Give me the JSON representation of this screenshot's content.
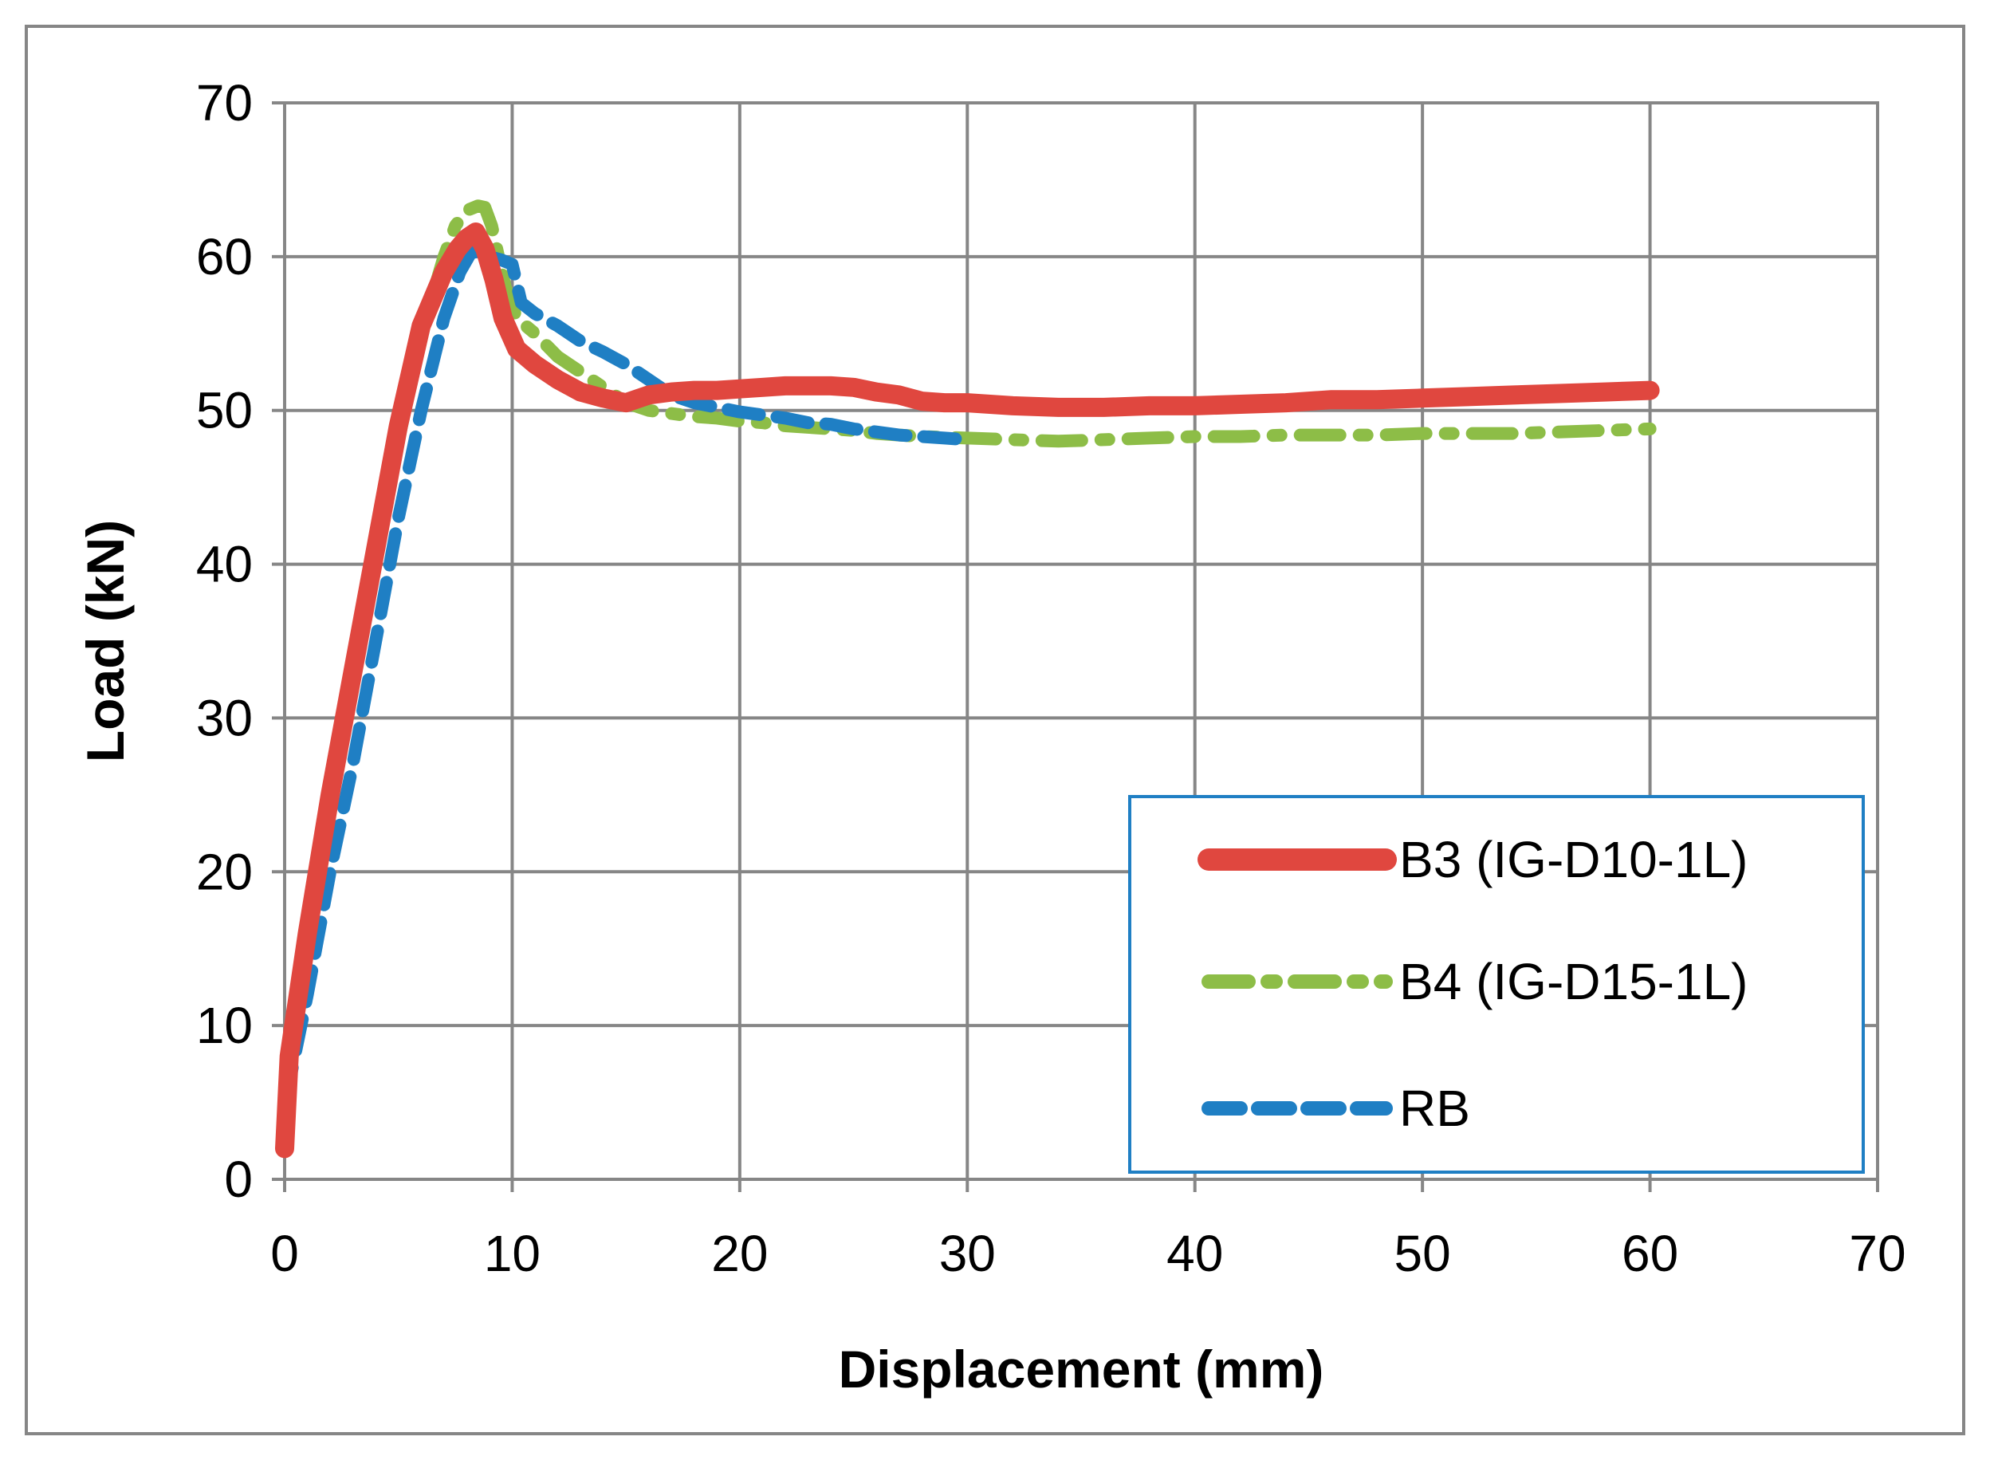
{
  "chart_data": {
    "type": "line",
    "title": "",
    "xlabel": "Displacement (mm)",
    "ylabel": "Load (kN)",
    "xlim": [
      0,
      70
    ],
    "ylim": [
      0,
      70
    ],
    "xticks": [
      0,
      10,
      20,
      30,
      40,
      50,
      60,
      70
    ],
    "yticks": [
      0,
      10,
      20,
      30,
      40,
      50,
      60,
      70
    ],
    "xtick_labels": [
      "0",
      "10",
      "20",
      "30",
      "40",
      "50",
      "60",
      "70"
    ],
    "ytick_labels": [
      "0",
      "10",
      "20",
      "30",
      "40",
      "50",
      "60",
      "70"
    ],
    "grid": true,
    "legend_position": "bottom-right",
    "series": [
      {
        "name": "B3 (IG-D10-1L)",
        "color": "#e0473f",
        "style": "solid",
        "x": [
          0,
          0.2,
          1,
          2,
          3,
          4,
          5,
          6,
          7,
          7.6,
          8,
          8.4,
          8.8,
          9.2,
          9.6,
          10.2,
          11,
          12,
          13,
          14,
          15,
          16,
          17,
          18,
          19,
          20,
          21,
          22,
          23,
          24,
          25,
          26,
          27,
          28,
          29,
          30,
          32,
          34,
          36,
          38,
          40,
          42,
          44,
          46,
          48,
          50,
          52,
          54,
          56,
          58,
          60
        ],
        "y": [
          2,
          8,
          16,
          25,
          33,
          41,
          49,
          55.5,
          59,
          60.5,
          61.2,
          61.6,
          60.5,
          58.5,
          56,
          54,
          53,
          52,
          51.2,
          50.8,
          50.5,
          51,
          51.2,
          51.3,
          51.3,
          51.4,
          51.5,
          51.6,
          51.6,
          51.6,
          51.5,
          51.2,
          51,
          50.6,
          50.5,
          50.5,
          50.3,
          50.2,
          50.2,
          50.3,
          50.3,
          50.4,
          50.5,
          50.7,
          50.7,
          50.8,
          50.9,
          51,
          51.1,
          51.2,
          51.3
        ]
      },
      {
        "name": "B4 (IG-D15-1L)",
        "color": "#8dbd47",
        "style": "dash-dot",
        "x": [
          0,
          0.3,
          1,
          2,
          3,
          4,
          5,
          6,
          7,
          7.5,
          8,
          8.5,
          8.8,
          9.1,
          9.4,
          9.7,
          10.2,
          11,
          12,
          13,
          14,
          15,
          16,
          17,
          18,
          19,
          20,
          21,
          22,
          23,
          24,
          25,
          26,
          28,
          30,
          32,
          34,
          36,
          38,
          40,
          42,
          44,
          46,
          48,
          50,
          52,
          54,
          56,
          58,
          60
        ],
        "y": [
          3,
          10,
          16,
          24,
          32,
          40,
          48,
          55,
          60,
          62,
          63,
          63.3,
          63.2,
          62,
          60,
          58,
          56,
          55,
          53.5,
          52.5,
          51.5,
          50.5,
          50,
          49.8,
          49.6,
          49.5,
          49.3,
          49.2,
          49,
          48.9,
          48.8,
          48.7,
          48.5,
          48.3,
          48.2,
          48.1,
          48,
          48.1,
          48.2,
          48.3,
          48.3,
          48.4,
          48.4,
          48.4,
          48.5,
          48.5,
          48.5,
          48.6,
          48.7,
          48.8
        ]
      },
      {
        "name": "RB",
        "color": "#1f7fc4",
        "style": "dashed",
        "x": [
          0,
          0.3,
          1,
          2,
          3,
          4,
          5,
          6,
          7,
          7.7,
          8.2,
          8.6,
          9,
          9.5,
          10,
          10.4,
          11,
          12,
          13,
          14,
          15,
          16,
          17,
          18,
          19,
          20,
          21,
          22,
          23,
          24,
          25,
          26,
          27,
          28,
          29,
          30
        ],
        "y": [
          2,
          7,
          12,
          20,
          27,
          35,
          43,
          50,
          56,
          59,
          60.3,
          60.3,
          60,
          59.8,
          59.5,
          57,
          56.3,
          55.5,
          54.5,
          53.8,
          53,
          52,
          51,
          50.5,
          50.2,
          49.9,
          49.7,
          49.5,
          49.2,
          49.1,
          48.8,
          48.6,
          48.4,
          48.3,
          48.2,
          48.1
        ]
      }
    ]
  }
}
